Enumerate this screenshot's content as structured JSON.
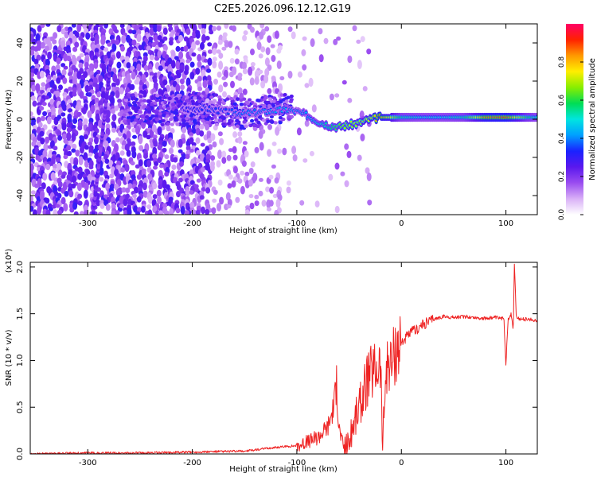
{
  "title": "C2E5.2026.096.12.12.G19",
  "colors": {
    "snr_line": "#ee2222",
    "colormap": [
      "#ffffff",
      "#d9b0f7",
      "#9a4cf0",
      "#5a18ee",
      "#1a22ff",
      "#00a0ff",
      "#00e5e0",
      "#00dd55",
      "#88ee00",
      "#ffee00",
      "#ff9900",
      "#ff2200",
      "#ff0066"
    ]
  },
  "chart_data": [
    {
      "type": "heatmap",
      "name": "spectrogram",
      "xlabel": "Height of straight line (km)",
      "ylabel": "Frequency (Hz)",
      "xlim": [
        -355,
        130
      ],
      "ylim": [
        -50,
        50
      ],
      "xticks": [
        -300,
        -200,
        -100,
        0,
        100
      ],
      "xtick_labels": [
        "-300",
        "-200",
        "-100",
        "0",
        "100"
      ],
      "yticks": [
        -40,
        -20,
        0,
        20,
        40
      ],
      "ytick_labels": [
        "-40",
        "-20",
        "0",
        "20",
        "40"
      ],
      "colorbar": {
        "label": "Normalized spectral amplitude",
        "range": [
          0,
          1
        ],
        "ticks": [
          0.0,
          0.2,
          0.4,
          0.6,
          0.8
        ],
        "tick_labels": [
          "0.0",
          "0.2",
          "0.4",
          "0.6",
          "0.8"
        ]
      },
      "ridge_frequency": {
        "x": [
          -210,
          -190,
          -170,
          -150,
          -130,
          -110,
          -100,
          -90,
          -80,
          -70,
          -60,
          -50,
          -40,
          -30,
          -20,
          -10,
          0,
          20,
          40,
          60,
          80,
          100,
          120,
          130
        ],
        "y": [
          5,
          6,
          4,
          3,
          4,
          5,
          4,
          2,
          -1,
          -3,
          -4,
          -3,
          -2,
          0,
          1,
          1,
          1,
          1,
          1,
          1,
          1,
          1,
          1,
          1
        ]
      },
      "ridge_amplitude": {
        "x": [
          -210,
          -190,
          -170,
          -150,
          -130,
          -110,
          -100,
          -90,
          -80,
          -70,
          -60,
          -50,
          -40,
          -30,
          -20,
          -10,
          0,
          20,
          40,
          60,
          80,
          100,
          120,
          130
        ],
        "v": [
          0.3,
          0.35,
          0.35,
          0.4,
          0.4,
          0.45,
          0.4,
          0.45,
          0.5,
          0.55,
          0.65,
          0.7,
          0.7,
          0.75,
          0.85,
          0.75,
          0.55,
          0.5,
          0.5,
          0.55,
          0.85,
          0.9,
          0.6,
          0.5
        ]
      },
      "diagonal_streak": {
        "x_start": -295,
        "y_start": -50,
        "x_end": -278,
        "y_end": 30
      }
    },
    {
      "type": "line",
      "name": "snr",
      "xlabel": "Height of straight line (km)",
      "ylabel": "SNR (10 * v/v)",
      "y_multiplier_label": "(x10⁴)",
      "xlim": [
        -355,
        130
      ],
      "ylim": [
        0,
        2.05
      ],
      "xticks": [
        -300,
        -200,
        -100,
        0,
        100
      ],
      "xtick_labels": [
        "-300",
        "-200",
        "-100",
        "0",
        "100"
      ],
      "yticks": [
        0.0,
        0.5,
        1.0,
        1.5,
        2.0
      ],
      "ytick_labels": [
        "0.0",
        "0.5",
        "1.0",
        "1.5",
        "2.0"
      ],
      "series": [
        {
          "name": "SNR",
          "x": [
            -355,
            -300,
            -250,
            -200,
            -150,
            -120,
            -100,
            -90,
            -80,
            -70,
            -65,
            -62,
            -60,
            -57,
            -55,
            -50,
            -45,
            -40,
            -35,
            -30,
            -25,
            -20,
            -18,
            -15,
            -12,
            -10,
            -5,
            0,
            5,
            10,
            20,
            30,
            40,
            50,
            60,
            70,
            80,
            90,
            95,
            98,
            100,
            102,
            105,
            107,
            108,
            110,
            115,
            120,
            130
          ],
          "y": [
            0.0,
            0.01,
            0.01,
            0.02,
            0.03,
            0.07,
            0.09,
            0.13,
            0.18,
            0.3,
            0.5,
            0.75,
            0.3,
            0.15,
            0.07,
            0.12,
            0.35,
            0.5,
            0.7,
            0.85,
            0.9,
            1.0,
            0.08,
            0.85,
            1.05,
            0.95,
            1.15,
            1.2,
            1.25,
            1.3,
            1.38,
            1.44,
            1.47,
            1.46,
            1.47,
            1.46,
            1.45,
            1.46,
            1.45,
            1.45,
            0.95,
            1.44,
            1.5,
            1.3,
            2.05,
            1.45,
            1.44,
            1.44,
            1.43
          ]
        }
      ]
    }
  ]
}
